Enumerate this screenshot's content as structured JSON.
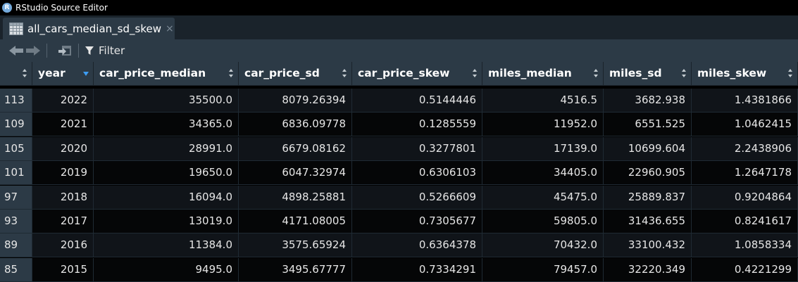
{
  "window": {
    "title": "RStudio Source Editor",
    "app_icon_letter": "R"
  },
  "tab": {
    "label": "all_cars_median_sd_skew",
    "close_glyph": "×"
  },
  "toolbar": {
    "filter_label": "Filter"
  },
  "table": {
    "columns": [
      "",
      "year",
      "car_price_median",
      "car_price_sd",
      "car_price_skew",
      "miles_median",
      "miles_sd",
      "miles_skew"
    ],
    "rows": [
      [
        "113",
        "2022",
        "35500.0",
        "8079.26394",
        "0.5144446",
        "4516.5",
        "3682.938",
        "1.4381866"
      ],
      [
        "109",
        "2021",
        "34365.0",
        "6836.09778",
        "0.1285559",
        "11952.0",
        "6551.525",
        "1.0462415"
      ],
      [
        "105",
        "2020",
        "28991.0",
        "6679.08162",
        "0.3277801",
        "17139.0",
        "10699.604",
        "2.2438906"
      ],
      [
        "101",
        "2019",
        "19650.0",
        "6047.32974",
        "0.6306103",
        "34405.0",
        "22960.905",
        "1.2647178"
      ],
      [
        "97",
        "2018",
        "16094.0",
        "4898.25881",
        "0.5266609",
        "45475.0",
        "25889.837",
        "0.9204864"
      ],
      [
        "93",
        "2017",
        "13019.0",
        "4171.08005",
        "0.7305677",
        "59805.0",
        "31436.655",
        "0.8241617"
      ],
      [
        "89",
        "2016",
        "11384.0",
        "3575.65924",
        "0.6364378",
        "70432.0",
        "33100.432",
        "1.0858334"
      ],
      [
        "85",
        "2015",
        "9495.0",
        "3495.67777",
        "0.7334291",
        "79457.0",
        "32220.349",
        "0.4221299"
      ]
    ],
    "sorted_column": "year",
    "sort_direction": "descending"
  },
  "colors": {
    "accent": "#3d9df3",
    "header_bg": "#2c3a46",
    "tabbar_bg": "#1a232b"
  }
}
